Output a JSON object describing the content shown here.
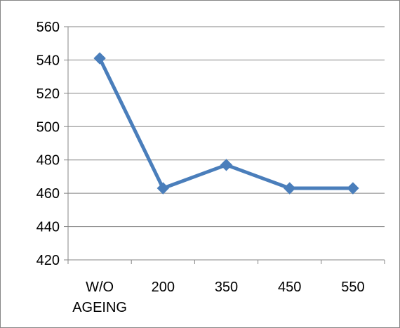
{
  "chart_data": {
    "type": "line",
    "categories": [
      "W/O AGEING",
      "200",
      "350",
      "450",
      "550"
    ],
    "category_lines": [
      [
        "W/O",
        "AGEING"
      ],
      [
        "200"
      ],
      [
        "350"
      ],
      [
        "450"
      ],
      [
        "550"
      ]
    ],
    "series": [
      {
        "values": [
          541,
          463,
          477,
          463,
          463
        ],
        "color": "#4a7ebb",
        "marker": "diamond"
      }
    ],
    "ylim": [
      420,
      560
    ],
    "yticks": [
      420,
      440,
      460,
      480,
      500,
      520,
      540,
      560
    ],
    "grid": true,
    "legend": "none",
    "title": "",
    "xlabel": "",
    "ylabel": ""
  }
}
